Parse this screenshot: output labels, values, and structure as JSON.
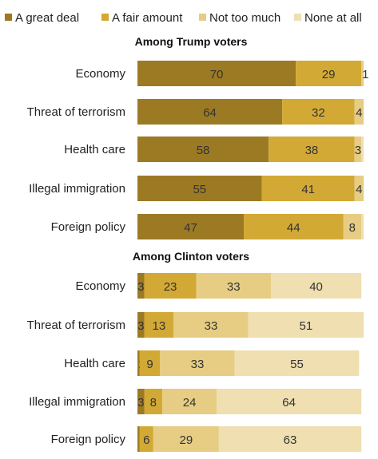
{
  "chart_data": {
    "type": "bar",
    "orientation": "horizontal",
    "stacked": true,
    "legend": {
      "position": "top",
      "entries": [
        {
          "name": "A great deal",
          "color": "#9c7a24"
        },
        {
          "name": "A fair amount",
          "color": "#d3a935"
        },
        {
          "name": "Not too much",
          "color": "#e6cd83"
        },
        {
          "name": "None at all",
          "color": "#efdfb1"
        }
      ]
    },
    "xlim": [
      0,
      100
    ],
    "grid": false,
    "panels": [
      {
        "title": "Among Trump voters",
        "categories": [
          "Economy",
          "Threat of terrorism",
          "Health care",
          "Illegal immigration",
          "Foreign policy"
        ],
        "series": [
          {
            "name": "A great deal",
            "values": [
              70,
              64,
              58,
              55,
              47
            ]
          },
          {
            "name": "A fair amount",
            "values": [
              29,
              32,
              38,
              41,
              44
            ]
          },
          {
            "name": "Not too much",
            "values": [
              1,
              4,
              3,
              4,
              8
            ]
          },
          {
            "name": "None at all",
            "values": [
              0,
              0,
              1,
              0,
              1
            ]
          }
        ],
        "labels": [
          [
            "70",
            "29",
            "1",
            ""
          ],
          [
            "64",
            "32",
            "4",
            ""
          ],
          [
            "58",
            "38",
            "3",
            ""
          ],
          [
            "55",
            "41",
            "4",
            ""
          ],
          [
            "47",
            "44",
            "8",
            ""
          ]
        ]
      },
      {
        "title": "Among Clinton voters",
        "categories": [
          "Economy",
          "Threat of terrorism",
          "Health care",
          "Illegal immigration",
          "Foreign policy"
        ],
        "series": [
          {
            "name": "A great deal",
            "values": [
              3,
              3,
              1,
              3,
              1
            ]
          },
          {
            "name": "A fair amount",
            "values": [
              23,
              13,
              9,
              8,
              6
            ]
          },
          {
            "name": "Not too much",
            "values": [
              33,
              33,
              33,
              24,
              29
            ]
          },
          {
            "name": "None at all",
            "values": [
              40,
              51,
              55,
              64,
              63
            ]
          }
        ],
        "labels": [
          [
            "3",
            "23",
            "33",
            "40"
          ],
          [
            "3",
            "13",
            "33",
            "51"
          ],
          [
            "1",
            "9",
            "33",
            "55"
          ],
          [
            "3",
            "8",
            "24",
            "64"
          ],
          [
            "",
            "6",
            "29",
            "63"
          ]
        ]
      }
    ]
  }
}
